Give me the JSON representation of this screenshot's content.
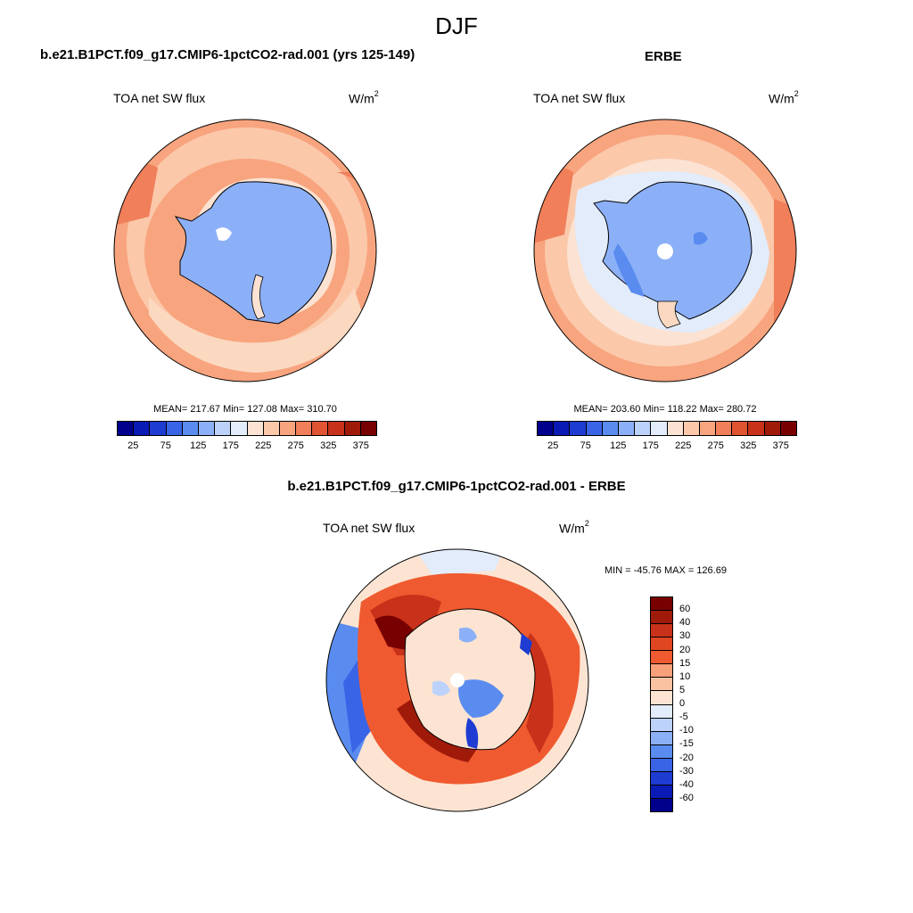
{
  "season": "DJF",
  "panels": {
    "model": {
      "title": "b.e21.B1PCT.f09_g17.CMIP6-1pctCO2-rad.001 (yrs 125-149)",
      "variable": "TOA net SW flux",
      "units_base": "W/m",
      "units_exp": "2",
      "stats": "MEAN= 217.67  Min= 127.08  Max= 310.70"
    },
    "obs": {
      "title": "ERBE",
      "variable": "TOA net SW flux",
      "units_base": "W/m",
      "units_exp": "2",
      "stats": "MEAN= 203.60  Min= 118.22  Max= 280.72"
    },
    "diff": {
      "title": "b.e21.B1PCT.f09_g17.CMIP6-1pctCO2-rad.001 - ERBE",
      "variable": "TOA net SW flux",
      "units_base": "W/m",
      "units_exp": "2",
      "stats": "MIN = -45.76 MAX = 126.69"
    }
  },
  "colorbars": {
    "absolute": {
      "labels": [
        "25",
        "75",
        "125",
        "175",
        "225",
        "275",
        "325",
        "375"
      ],
      "colors": [
        "#00008c",
        "#0a1ab4",
        "#1e3cd2",
        "#3a64e6",
        "#5a8cf0",
        "#8cb0f8",
        "#bcd2fa",
        "#e2ecfa",
        "#fbe2d2",
        "#fbc8aa",
        "#f8a47e",
        "#f07f5a",
        "#e05432",
        "#c8321a",
        "#a01a0a",
        "#780000"
      ]
    },
    "difference": {
      "labels": [
        "60",
        "40",
        "30",
        "20",
        "15",
        "10",
        "5",
        "0",
        "-5",
        "-10",
        "-15",
        "-20",
        "-30",
        "-40",
        "-60"
      ],
      "colors": [
        "#780000",
        "#a01a0a",
        "#c8321a",
        "#e04622",
        "#f05a30",
        "#f8a07a",
        "#fbc2a2",
        "#fde4d2",
        "#e2ecfa",
        "#bcd2fa",
        "#8cb0f8",
        "#5a8cf0",
        "#3a64e6",
        "#1e3cd2",
        "#0a1ab4",
        "#00008c"
      ]
    }
  }
}
